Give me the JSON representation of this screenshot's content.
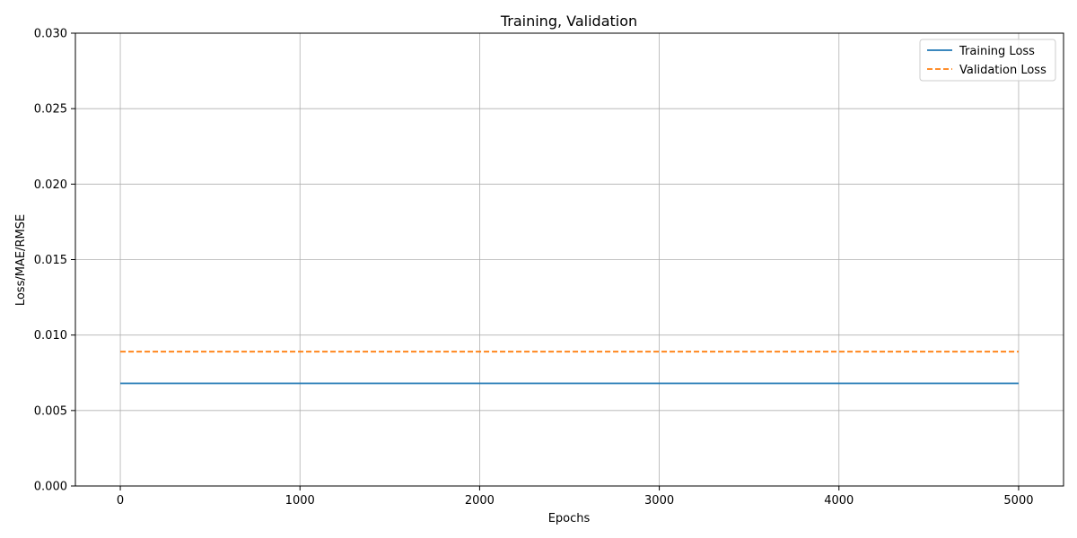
{
  "chart_data": {
    "type": "line",
    "title": "Training, Validation",
    "xlabel": "Epochs",
    "ylabel": "Loss/MAE/RMSE",
    "xlim": [
      -250,
      5250
    ],
    "ylim": [
      0,
      0.03
    ],
    "xticks": [
      0,
      1000,
      2000,
      3000,
      4000,
      5000
    ],
    "xtick_labels": [
      "0",
      "1000",
      "2000",
      "3000",
      "4000",
      "5000"
    ],
    "yticks": [
      0,
      0.005,
      0.01,
      0.015,
      0.02,
      0.025,
      0.03
    ],
    "ytick_labels": [
      "0.000",
      "0.005",
      "0.010",
      "0.015",
      "0.020",
      "0.025",
      "0.030"
    ],
    "grid": true,
    "legend_position": "top-right",
    "series": [
      {
        "name": "Training Loss",
        "color": "#1f77b4",
        "line_style": "solid",
        "x": [
          0,
          5000
        ],
        "y": [
          0.0068,
          0.0068
        ]
      },
      {
        "name": "Validation Loss",
        "color": "#ff7f0e",
        "line_style": "dashed",
        "x": [
          0,
          5000
        ],
        "y": [
          0.0089,
          0.0089
        ]
      }
    ]
  }
}
